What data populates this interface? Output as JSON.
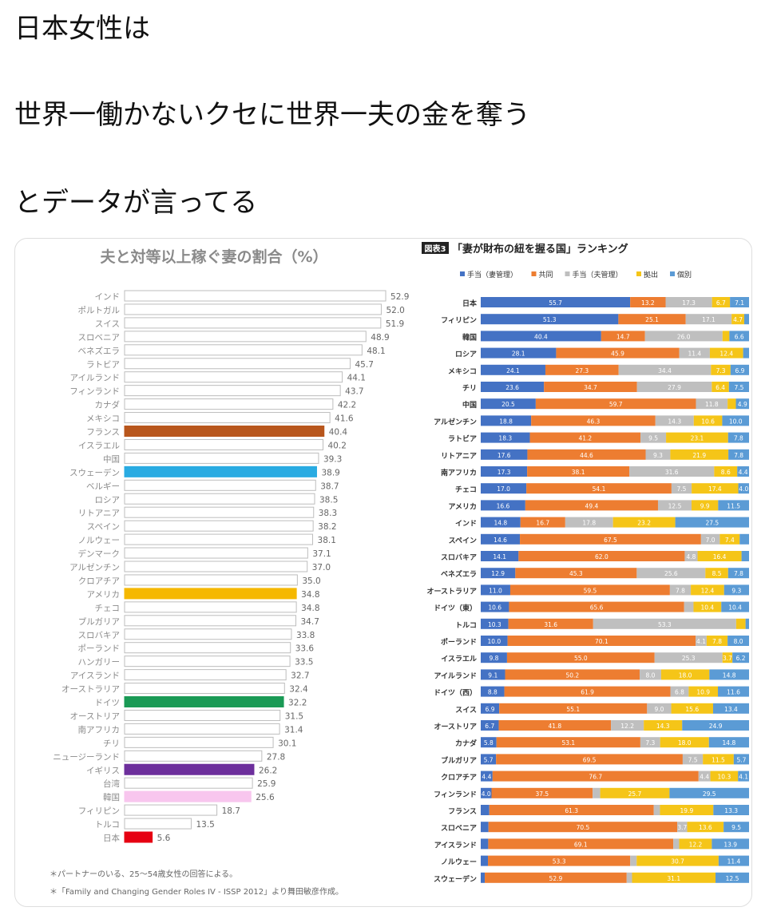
{
  "post": {
    "lines": [
      "日本女性は",
      "世界一働かないクセに世界一夫の金を奪う",
      "とデータが言ってる"
    ]
  },
  "chart_data": [
    {
      "type": "bar",
      "orientation": "horizontal",
      "title": "夫と対等以上稼ぐ妻の割合（%）",
      "xlim": [
        0,
        55
      ],
      "categories": [
        "インド",
        "ポルトガル",
        "スイス",
        "スロベニア",
        "ベネズエラ",
        "ラトビア",
        "アイルランド",
        "フィンランド",
        "カナダ",
        "メキシコ",
        "フランス",
        "イスラエル",
        "中国",
        "スウェーデン",
        "ベルギー",
        "ロシア",
        "リトアニア",
        "スペイン",
        "ノルウェー",
        "デンマーク",
        "アルゼンチン",
        "クロアチア",
        "アメリカ",
        "チェコ",
        "ブルガリア",
        "スロバキア",
        "ポーランド",
        "ハンガリー",
        "アイスランド",
        "オーストラリア",
        "ドイツ",
        "オーストリア",
        "南アフリカ",
        "チリ",
        "ニュージーランド",
        "イギリス",
        "台湾",
        "韓国",
        "フィリピン",
        "トルコ",
        "日本"
      ],
      "values": [
        52.9,
        52.0,
        51.9,
        48.9,
        48.1,
        45.7,
        44.1,
        43.7,
        42.2,
        41.6,
        40.4,
        40.2,
        39.3,
        38.9,
        38.7,
        38.5,
        38.3,
        38.2,
        38.1,
        37.1,
        37.0,
        35.0,
        34.8,
        34.8,
        34.7,
        33.8,
        33.6,
        33.5,
        32.7,
        32.4,
        32.2,
        31.5,
        31.4,
        30.1,
        27.8,
        26.2,
        25.9,
        25.6,
        18.7,
        13.5,
        5.6
      ],
      "highlights": {
        "フランス": "#b8561c",
        "スウェーデン": "#29abe2",
        "アメリカ": "#f5b800",
        "ドイツ": "#1a9a55",
        "イギリス": "#6d2f9c",
        "韓国": "#f8c6ee",
        "日本": "#e60012"
      },
      "default_fill": "#ffffff",
      "notes": [
        "＊パートナーのいる、25〜54歳女性の回答による。",
        "＊「Family and Changing Gender Roles IV - ISSP 2012」より舞田敏彦作成。"
      ]
    },
    {
      "type": "bar",
      "stacked": true,
      "orientation": "horizontal",
      "badge": "図表3",
      "title": "「妻が財布の紐を握る国」ランキング",
      "xlim": [
        0,
        100
      ],
      "series": [
        {
          "name": "手当（妻管理）",
          "color": "#4472c4"
        },
        {
          "name": "共同",
          "color": "#ed7d31"
        },
        {
          "name": "手当（夫管理）",
          "color": "#bfbfbf"
        },
        {
          "name": "拠出",
          "color": "#f5c518"
        },
        {
          "name": "個別",
          "color": "#5b9bd5"
        }
      ],
      "rows": [
        {
          "country": "日本",
          "values": [
            55.7,
            13.2,
            17.3,
            6.7,
            7.1
          ]
        },
        {
          "country": "フィリピン",
          "values": [
            51.3,
            25.1,
            17.1,
            4.7,
            1.8
          ]
        },
        {
          "country": "韓国",
          "values": [
            40.4,
            14.7,
            26.0,
            2.3,
            6.6
          ]
        },
        {
          "country": "ロシア",
          "values": [
            28.1,
            45.9,
            11.4,
            12.4,
            2.2
          ]
        },
        {
          "country": "メキシコ",
          "values": [
            24.1,
            27.3,
            34.4,
            7.3,
            6.9
          ]
        },
        {
          "country": "チリ",
          "values": [
            23.6,
            34.7,
            27.9,
            6.4,
            7.5
          ]
        },
        {
          "country": "中国",
          "values": [
            20.5,
            59.7,
            11.8,
            3.1,
            4.9
          ]
        },
        {
          "country": "アルゼンチン",
          "values": [
            18.8,
            46.3,
            14.3,
            10.6,
            10.0
          ]
        },
        {
          "country": "ラトビア",
          "values": [
            18.3,
            41.2,
            9.5,
            23.1,
            7.8
          ]
        },
        {
          "country": "リトアニア",
          "values": [
            17.6,
            44.6,
            9.3,
            21.9,
            7.8
          ]
        },
        {
          "country": "南アフリカ",
          "values": [
            17.3,
            38.1,
            31.6,
            8.6,
            4.4
          ]
        },
        {
          "country": "チェコ",
          "values": [
            17.0,
            54.1,
            7.5,
            17.4,
            4.0
          ]
        },
        {
          "country": "アメリカ",
          "values": [
            16.6,
            49.4,
            12.5,
            9.9,
            11.5
          ]
        },
        {
          "country": "インド",
          "values": [
            14.8,
            16.7,
            17.8,
            23.2,
            27.5
          ]
        },
        {
          "country": "スペイン",
          "values": [
            14.6,
            67.5,
            7.0,
            7.4,
            3.5
          ]
        },
        {
          "country": "スロバキア",
          "values": [
            14.1,
            62.0,
            4.8,
            16.4,
            2.8
          ]
        },
        {
          "country": "ベネズエラ",
          "values": [
            12.9,
            45.3,
            25.6,
            8.5,
            7.8
          ]
        },
        {
          "country": "オーストラリア",
          "values": [
            11.0,
            59.5,
            7.8,
            12.4,
            9.3
          ]
        },
        {
          "country": "ドイツ（東）",
          "values": [
            10.6,
            65.6,
            3.5,
            10.4,
            10.4
          ]
        },
        {
          "country": "トルコ",
          "values": [
            10.3,
            31.6,
            53.3,
            3.5,
            1.3
          ]
        },
        {
          "country": "ポーランド",
          "values": [
            10.0,
            70.1,
            4.1,
            7.8,
            8.0
          ]
        },
        {
          "country": "イスラエル",
          "values": [
            9.8,
            55.0,
            25.3,
            3.7,
            6.2
          ]
        },
        {
          "country": "アイルランド",
          "values": [
            9.1,
            50.2,
            8.0,
            18.0,
            14.8
          ]
        },
        {
          "country": "ドイツ（西）",
          "values": [
            8.8,
            61.9,
            6.8,
            10.9,
            11.6
          ]
        },
        {
          "country": "スイス",
          "values": [
            6.9,
            55.1,
            9.0,
            15.6,
            13.4
          ]
        },
        {
          "country": "オーストリア",
          "values": [
            6.7,
            41.8,
            12.2,
            14.3,
            24.9
          ]
        },
        {
          "country": "カナダ",
          "values": [
            5.8,
            53.1,
            7.3,
            18.0,
            14.8
          ]
        },
        {
          "country": "ブルガリア",
          "values": [
            5.7,
            69.5,
            7.5,
            11.5,
            5.7
          ]
        },
        {
          "country": "クロアチア",
          "values": [
            4.4,
            76.7,
            4.4,
            10.3,
            4.1
          ]
        },
        {
          "country": "フィンランド",
          "values": [
            4.0,
            37.5,
            2.8,
            25.7,
            29.5
          ]
        },
        {
          "country": "フランス",
          "values": [
            3.2,
            61.3,
            2.3,
            19.9,
            13.3
          ]
        },
        {
          "country": "スロベニア",
          "values": [
            2.9,
            70.5,
            3.7,
            13.6,
            9.5
          ]
        },
        {
          "country": "アイスランド",
          "values": [
            2.8,
            69.1,
            2.2,
            12.2,
            13.9
          ]
        },
        {
          "country": "ノルウェー",
          "values": [
            2.7,
            53.3,
            2.4,
            30.7,
            11.4
          ]
        },
        {
          "country": "スウェーデン",
          "values": [
            1.5,
            52.9,
            2.0,
            31.1,
            12.5
          ]
        }
      ]
    }
  ]
}
